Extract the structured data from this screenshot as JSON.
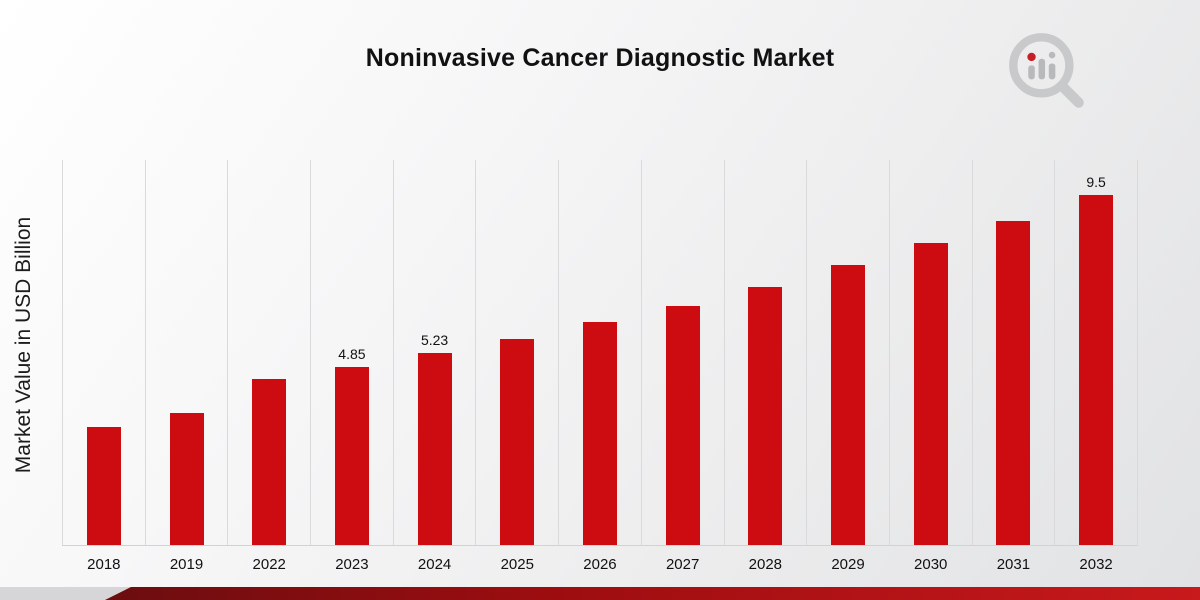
{
  "page": {
    "title": "Noninvasive Cancer Diagnostic Market",
    "ylabel": "Market Value in USD Billion"
  },
  "logo": {
    "name": "market-research-logo"
  },
  "chart_data": {
    "type": "bar",
    "title": "Noninvasive Cancer Diagnostic Market",
    "xlabel": "",
    "ylabel": "Market Value in USD Billion",
    "categories": [
      "2018",
      "2019",
      "2022",
      "2023",
      "2024",
      "2025",
      "2026",
      "2027",
      "2028",
      "2029",
      "2030",
      "2031",
      "2032"
    ],
    "values": [
      3.2,
      3.6,
      4.5,
      4.85,
      5.23,
      5.6,
      6.05,
      6.5,
      7.0,
      7.6,
      8.2,
      8.8,
      9.5
    ],
    "point_labels": [
      "",
      "",
      "",
      "4.85",
      "5.23",
      "",
      "",
      "",
      "",
      "",
      "",
      "",
      "9.5"
    ],
    "bar_color": "#cc0c10",
    "ylim": [
      0,
      10.5
    ],
    "grid": "vertical",
    "legend": "none"
  }
}
